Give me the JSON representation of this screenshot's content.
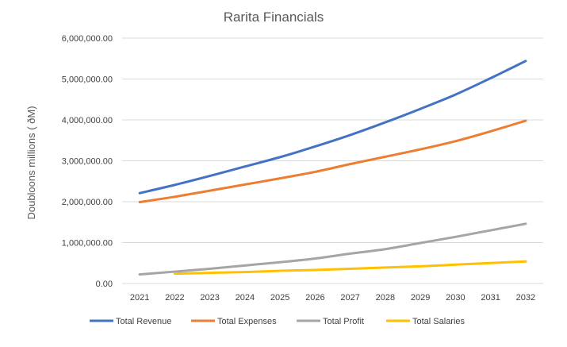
{
  "chart_data": {
    "type": "line",
    "title": "Rarita Financials",
    "xlabel": "",
    "ylabel": "Doubloons millions ( ðM)",
    "x": [
      "2021",
      "2022",
      "2023",
      "2024",
      "2025",
      "2026",
      "2027",
      "2028",
      "2029",
      "2030",
      "2031",
      "2032"
    ],
    "ylim": [
      0,
      6000000
    ],
    "yticks": [
      {
        "value": 0,
        "label": "0.00"
      },
      {
        "value": 1000000,
        "label": "1,000,000.00"
      },
      {
        "value": 2000000,
        "label": "2,000,000.00"
      },
      {
        "value": 3000000,
        "label": "3,000,000.00"
      },
      {
        "value": 4000000,
        "label": "4,000,000.00"
      },
      {
        "value": 5000000,
        "label": "5,000,000.00"
      },
      {
        "value": 6000000,
        "label": "6,000,000.00"
      }
    ],
    "grid": true,
    "legend_position": "bottom",
    "series": [
      {
        "name": "Total Revenue",
        "color": "#4472c4",
        "values": [
          2210000,
          2410000,
          2630000,
          2860000,
          3090000,
          3350000,
          3630000,
          3940000,
          4270000,
          4620000,
          5020000,
          5440000
        ]
      },
      {
        "name": "Total Expenses",
        "color": "#ed7d31",
        "values": [
          1990000,
          2120000,
          2270000,
          2420000,
          2570000,
          2730000,
          2920000,
          3100000,
          3280000,
          3480000,
          3720000,
          3980000
        ]
      },
      {
        "name": "Total Profit",
        "color": "#a5a5a5",
        "values": [
          220000,
          290000,
          360000,
          440000,
          520000,
          610000,
          730000,
          840000,
          990000,
          1140000,
          1300000,
          1460000
        ]
      },
      {
        "name": "Total Salaries",
        "color": "#ffc000",
        "values": [
          null,
          240000,
          260000,
          280000,
          310000,
          330000,
          360000,
          390000,
          420000,
          460000,
          500000,
          540000
        ]
      }
    ]
  }
}
